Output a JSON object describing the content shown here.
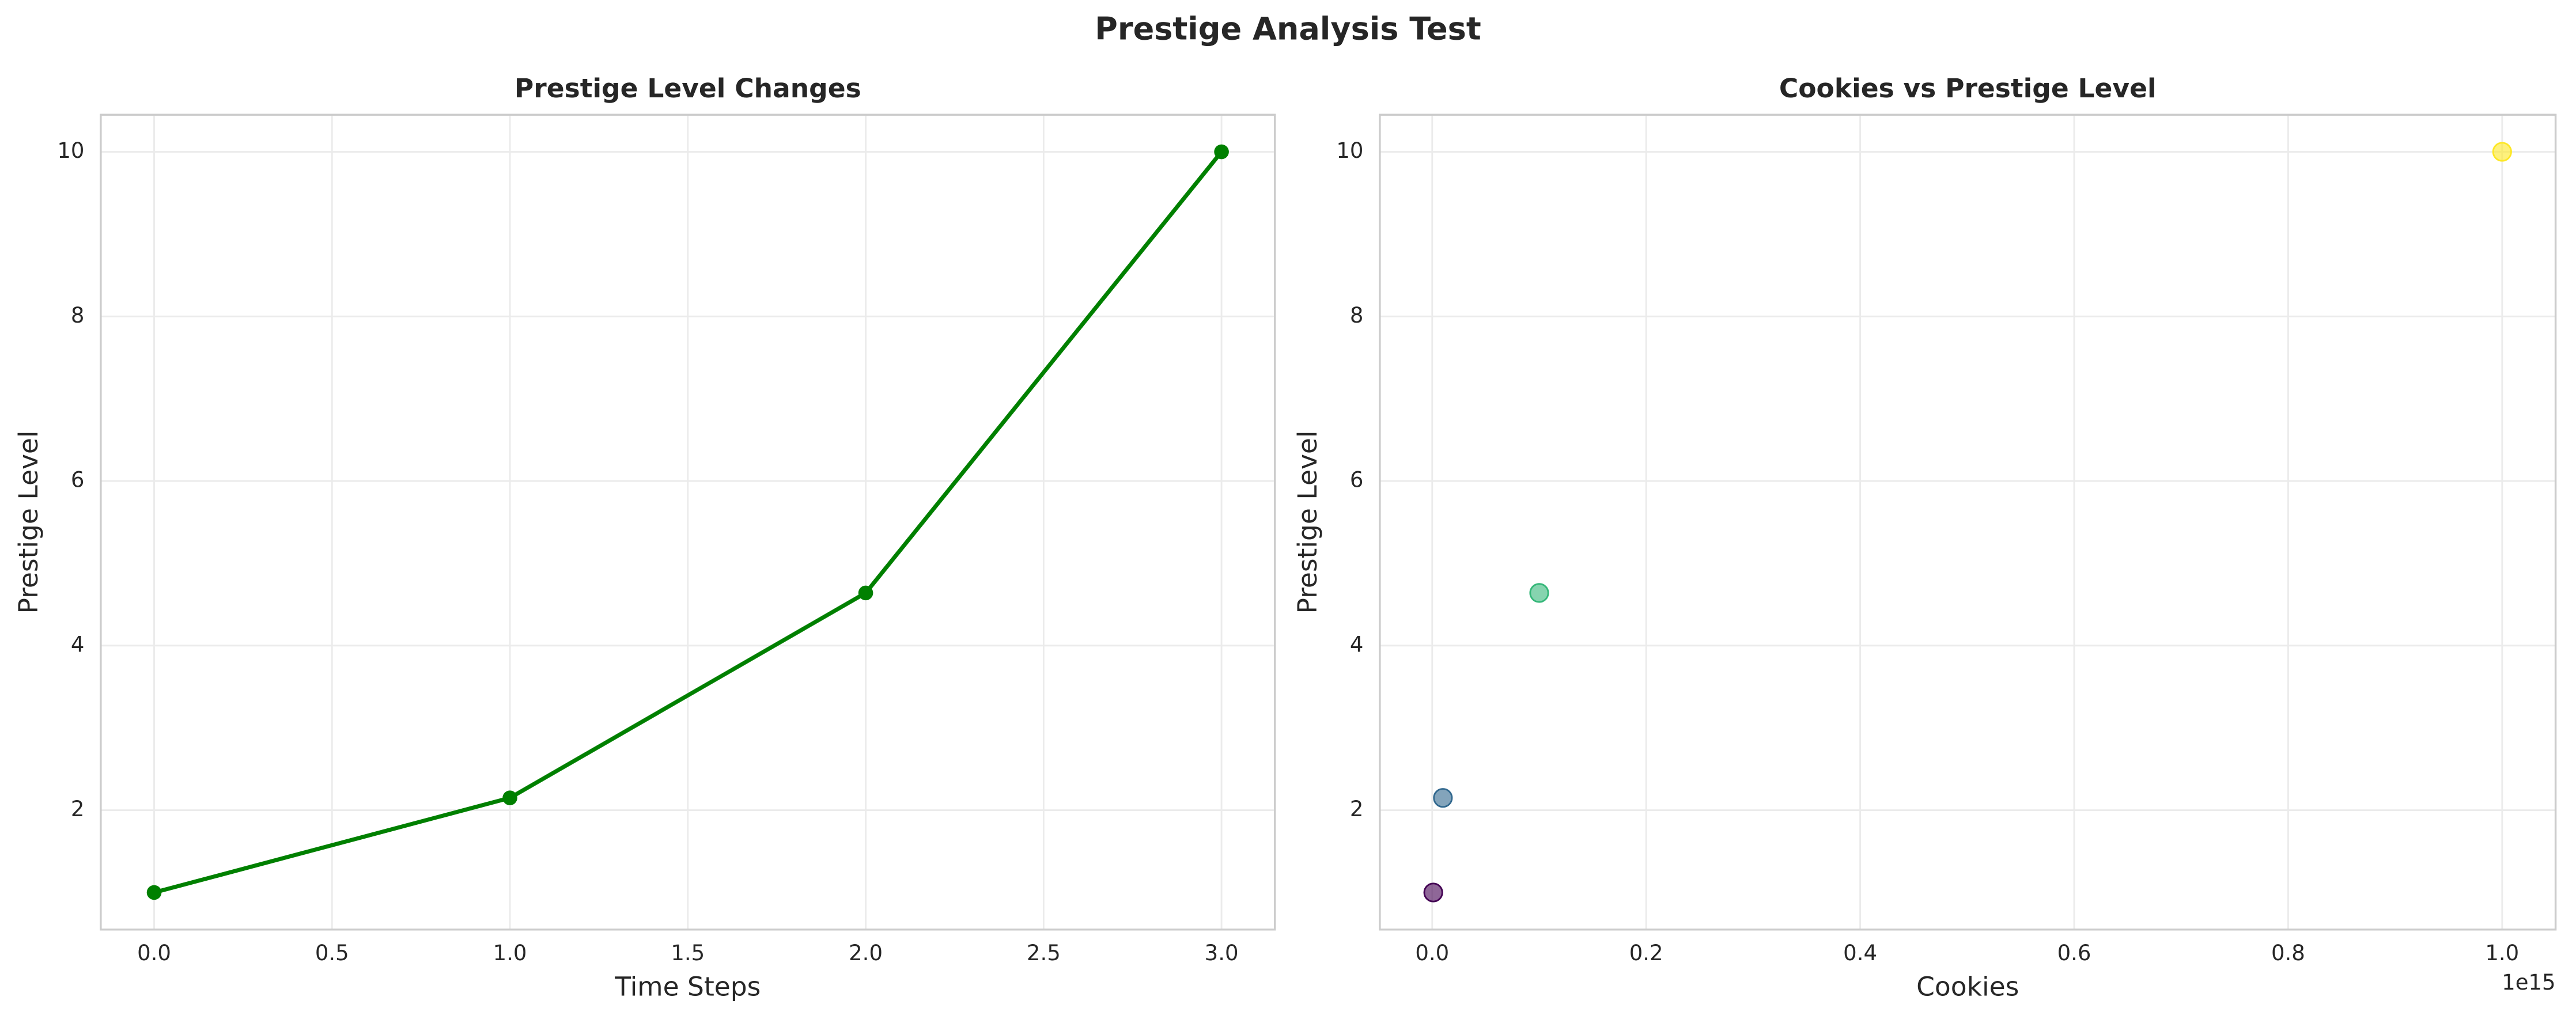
{
  "title": "Prestige Analysis Test",
  "chart_data": [
    {
      "type": "line",
      "title": "Prestige Level Changes",
      "x_label": "Time Steps",
      "y_label": "Prestige Level",
      "x": [
        0,
        1,
        2,
        3
      ],
      "values": [
        1,
        2.15,
        4.64,
        10
      ],
      "color": "#008000",
      "xlim": [
        -0.15,
        3.15
      ],
      "ylim": [
        0.55,
        10.45
      ],
      "xticks": [
        {
          "value": 0,
          "label": "0.0"
        },
        0.5,
        {
          "value": 1,
          "label": "1.0"
        },
        1.5,
        {
          "value": 2,
          "label": "2.0"
        },
        2.5,
        {
          "value": 3,
          "label": "3.0"
        }
      ],
      "yticks": [
        2,
        4,
        6,
        8,
        10
      ],
      "grid": true
    },
    {
      "type": "scatter",
      "title": "Cookies vs Prestige Level",
      "x_label": "Cookies",
      "y_label": "Prestige Level",
      "x": [
        1000000000000,
        10000000000000,
        100000000000000,
        1000000000000000
      ],
      "values": [
        1,
        2.15,
        4.64,
        10
      ],
      "colors": [
        "#440154",
        "#31688e",
        "#35b779",
        "#fde725"
      ],
      "xlim": [
        -48950000000000,
        1049950000000000
      ],
      "ylim": [
        0.55,
        10.45
      ],
      "xticks": [
        {
          "value": 0,
          "label": "0.0"
        },
        {
          "value": 200000000000000,
          "label": "0.2"
        },
        {
          "value": 400000000000000,
          "label": "0.4"
        },
        {
          "value": 600000000000000,
          "label": "0.6"
        },
        {
          "value": 800000000000000,
          "label": "0.8"
        },
        {
          "value": 1000000000000000,
          "label": "1.0"
        }
      ],
      "x_offset_label": "1e15",
      "yticks": [
        2,
        4,
        6,
        8,
        10
      ],
      "grid": true
    }
  ]
}
